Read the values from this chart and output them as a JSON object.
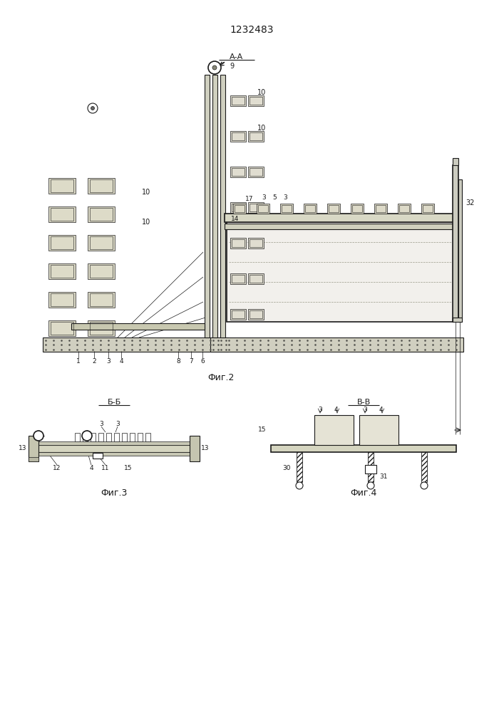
{
  "title": "1232483",
  "fig2_label": "Фиг.2",
  "fig3_label": "Фиг.3",
  "fig4_label": "Фиг.4",
  "section_aa": "А-А",
  "section_bb": "Б-Б",
  "section_vv": "В-В",
  "lc": "#1a1a1a",
  "fc_light": "#e8e8d8",
  "fc_med": "#d5d5c0",
  "fc_base": "#c8c8aa"
}
